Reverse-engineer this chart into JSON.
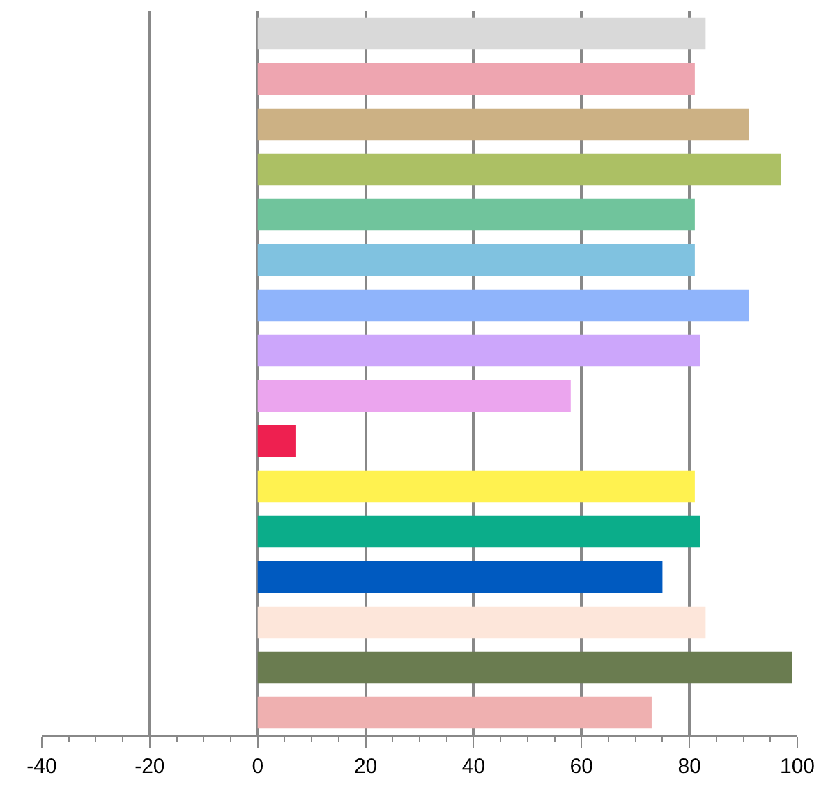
{
  "chart_data": {
    "type": "bar",
    "orientation": "horizontal",
    "categories": [
      null,
      null,
      null,
      null,
      null,
      null,
      null,
      null,
      null,
      null,
      null,
      null,
      null,
      null,
      null,
      null
    ],
    "values": [
      83,
      81,
      91,
      97,
      81,
      81,
      91,
      82,
      58,
      7,
      81,
      82,
      75,
      83,
      99,
      73
    ],
    "colors": [
      "#d9d9d9",
      "#eea5b0",
      "#ccb184",
      "#acc064",
      "#70c49c",
      "#80c2e0",
      "#8fb4fb",
      "#cca6fb",
      "#eba5ee",
      "#ee2050",
      "#fff250",
      "#0bad8a",
      "#005ac0",
      "#fde6da",
      "#6a7c50",
      "#efb0b0"
    ],
    "xlim": [
      -40,
      100
    ],
    "xticks": [
      -40,
      -20,
      0,
      20,
      40,
      60,
      80,
      100
    ],
    "grid": "x"
  }
}
